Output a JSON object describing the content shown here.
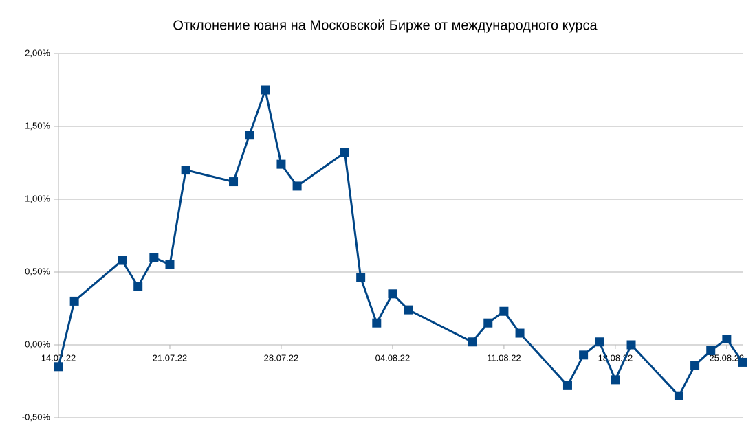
{
  "chart_data": {
    "type": "line",
    "title": "Отклонение юаня на Московской Бирже от международного курса",
    "x": [
      "14.07.22",
      "15.07.22",
      "18.07.22",
      "19.07.22",
      "20.07.22",
      "21.07.22",
      "22.07.22",
      "25.07.22",
      "26.07.22",
      "27.07.22",
      "28.07.22",
      "29.07.22",
      "01.08.22",
      "02.08.22",
      "03.08.22",
      "04.08.22",
      "05.08.22",
      "09.08.22",
      "10.08.22",
      "11.08.22",
      "12.08.22",
      "15.08.22",
      "16.08.22",
      "17.08.22",
      "18.08.22",
      "19.08.22",
      "22.08.22",
      "23.08.22",
      "24.08.22",
      "25.08.22",
      "26.08.22"
    ],
    "series": [
      {
        "name": "Отклонение",
        "color": "#004586",
        "values": [
          -0.15,
          0.3,
          0.58,
          0.4,
          0.6,
          0.55,
          1.2,
          1.12,
          1.44,
          1.75,
          1.24,
          1.09,
          1.32,
          0.46,
          0.15,
          0.35,
          0.24,
          0.02,
          0.15,
          0.23,
          0.08,
          -0.28,
          -0.07,
          0.02,
          -0.24,
          0.0,
          -0.35,
          -0.14,
          -0.04,
          0.04,
          -0.12
        ]
      }
    ],
    "xlim": [
      "14.07.22",
      "26.08.22"
    ],
    "xticks": [
      "14.07.22",
      "21.07.22",
      "28.07.22",
      "04.08.22",
      "11.08.22",
      "18.08.22",
      "25.08.22"
    ],
    "ylim": [
      -0.5,
      2
    ],
    "yticks": [
      {
        "value": -0.5,
        "label": "-0,50%"
      },
      {
        "value": 0,
        "label": "0,00%"
      },
      {
        "value": 0.5,
        "label": "0,50%"
      },
      {
        "value": 1,
        "label": "1,00%"
      },
      {
        "value": 1.5,
        "label": "1,50%"
      },
      {
        "value": 2,
        "label": "2,00%"
      }
    ],
    "grid": true
  }
}
